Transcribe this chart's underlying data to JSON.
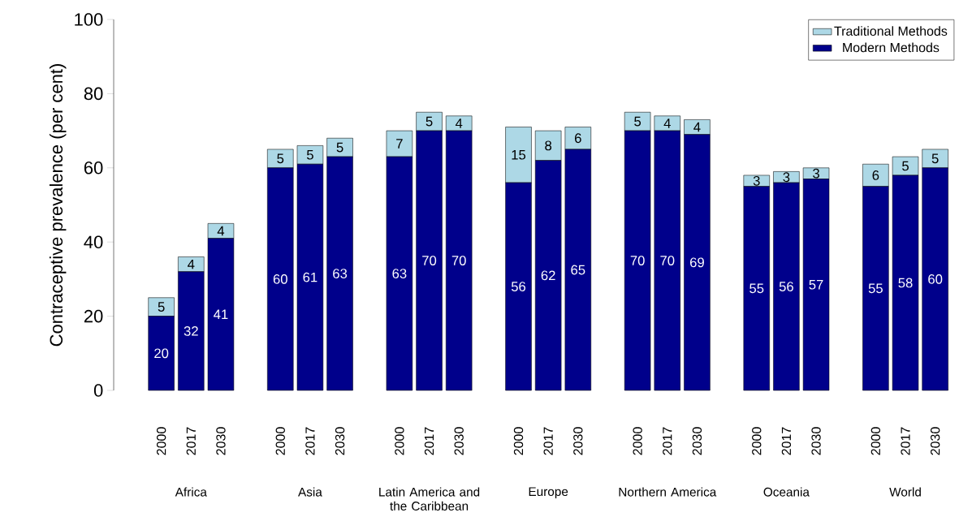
{
  "chart_data": {
    "type": "bar",
    "stacked": true,
    "ylabel": "Contraceptive prevalence (per cent)",
    "categories": [
      "2000",
      "2017",
      "2030",
      "2000",
      "2017",
      "2030",
      "2000",
      "2017",
      "2030",
      "2000",
      "2017",
      "2030",
      "2000",
      "2017",
      "2030",
      "2000",
      "2017",
      "2030",
      "2000",
      "2017",
      "2030"
    ],
    "annotations": [
      "Africa",
      "Asia",
      "Latin America and the Caribbean",
      "Europe",
      "Northern America",
      "Oceania",
      "World"
    ],
    "series": [
      {
        "name": "Modern Methods",
        "color": "#00008b",
        "values": [
          20,
          32,
          41,
          60,
          61,
          63,
          63,
          70,
          70,
          56,
          62,
          65,
          70,
          70,
          69,
          55,
          56,
          57,
          55,
          58,
          60
        ]
      },
      {
        "name": "Traditional Methods",
        "color": "#add8e6",
        "values": [
          5,
          4,
          4,
          5,
          5,
          5,
          7,
          5,
          4,
          15,
          8,
          6,
          5,
          4,
          4,
          3,
          3,
          3,
          6,
          5,
          5
        ]
      }
    ],
    "ylim": [
      0,
      100
    ],
    "yticks": [
      0,
      20,
      40,
      60,
      80,
      100
    ],
    "data_labels": true,
    "legend": "top right",
    "grid": false
  }
}
